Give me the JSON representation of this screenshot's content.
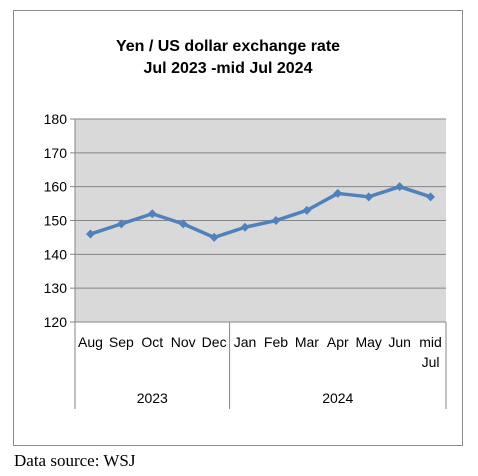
{
  "chart_data": {
    "type": "line",
    "title_lines": [
      "Yen / US dollar exchange rate",
      "Jul 2023 -mid Jul 2024"
    ],
    "categories": [
      [
        "Aug"
      ],
      [
        "Sep"
      ],
      [
        "Oct"
      ],
      [
        "Nov"
      ],
      [
        "Dec"
      ],
      [
        "Jan"
      ],
      [
        "Feb"
      ],
      [
        "Mar"
      ],
      [
        "Apr"
      ],
      [
        "May"
      ],
      [
        "Jun"
      ],
      [
        "mid",
        "Jul"
      ]
    ],
    "year_groups": [
      {
        "label": "2023",
        "count": 5
      },
      {
        "label": "2024",
        "count": 7
      }
    ],
    "series": [
      {
        "values": [
          146,
          149,
          152,
          149,
          145,
          148,
          150,
          153,
          158,
          157,
          160,
          157
        ]
      }
    ],
    "ylim": [
      120,
      180
    ],
    "yticks": [
      120,
      130,
      140,
      150,
      160,
      170,
      180
    ],
    "grid": true,
    "legend": "none",
    "colors": {
      "line": "#4f81bd",
      "plot_background": "#d9d9d9",
      "grid": "#868686"
    }
  },
  "source": "Data source: WSJ"
}
